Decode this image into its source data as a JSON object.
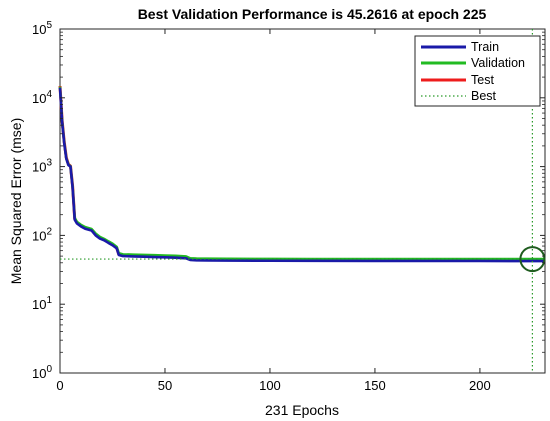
{
  "chart_data": {
    "type": "line",
    "title": "Best Validation Performance is 45.2616 at epoch 225",
    "xlabel": "231 Epochs",
    "ylabel": "Mean Squared Error  (mse)",
    "xlim": [
      0,
      231
    ],
    "ylim": [
      1,
      100000
    ],
    "yscale": "log",
    "xticks": [
      0,
      50,
      100,
      150,
      200
    ],
    "xtick_labels": [
      "0",
      "50",
      "100",
      "150",
      "200"
    ],
    "yticks": [
      {
        "value": 1,
        "base": "10",
        "exp": "0"
      },
      {
        "value": 10,
        "base": "10",
        "exp": "1"
      },
      {
        "value": 100,
        "base": "10",
        "exp": "2"
      },
      {
        "value": 1000,
        "base": "10",
        "exp": "3"
      },
      {
        "value": 10000,
        "base": "10",
        "exp": "4"
      },
      {
        "value": 100000,
        "base": "10",
        "exp": "5"
      }
    ],
    "legend_position": "top-right",
    "colors": {
      "train": "#1a1aa8",
      "validation": "#22bb22",
      "test": "#ee1c1c",
      "best": "#2a9a2a",
      "best_marker": "#1f5c1f"
    },
    "series": [
      {
        "name": "Train",
        "x": [
          0,
          1,
          2,
          3,
          4,
          5,
          6,
          7,
          8,
          10,
          12,
          15,
          17,
          19,
          21,
          23,
          25,
          27,
          28,
          30,
          35,
          40,
          45,
          50,
          55,
          60,
          62,
          65,
          70,
          80,
          100,
          120,
          150,
          180,
          200,
          220,
          225,
          231
        ],
        "y": [
          14000,
          4500,
          2200,
          1300,
          1050,
          1000,
          500,
          170,
          150,
          135,
          125,
          118,
          100,
          90,
          85,
          78,
          72,
          65,
          52,
          50,
          49.5,
          49,
          48.5,
          48,
          47.5,
          46.5,
          44,
          43.5,
          43.2,
          43,
          42.8,
          42.7,
          42.6,
          42.5,
          42.5,
          42.4,
          42.4,
          42.3
        ]
      },
      {
        "name": "Validation",
        "x": [
          0,
          1,
          2,
          3,
          4,
          5,
          6,
          7,
          8,
          10,
          12,
          15,
          17,
          19,
          21,
          23,
          25,
          27,
          28,
          30,
          35,
          40,
          45,
          50,
          55,
          60,
          62,
          65,
          70,
          80,
          100,
          120,
          150,
          180,
          200,
          220,
          225,
          231
        ],
        "y": [
          14500,
          4600,
          2250,
          1320,
          1070,
          1010,
          510,
          180,
          158,
          142,
          132,
          124,
          106,
          95,
          89,
          82,
          76,
          68,
          55,
          53,
          52.5,
          52,
          51.5,
          51,
          50.5,
          49.5,
          46.5,
          46,
          45.8,
          45.6,
          45.5,
          45.4,
          45.3,
          45.3,
          45.3,
          45.3,
          45.2616,
          45.3
        ]
      },
      {
        "name": "Test",
        "x": [
          0,
          1,
          2,
          3,
          4,
          5,
          6,
          7,
          8,
          10,
          12,
          15,
          17,
          19,
          21,
          23,
          25,
          27,
          28,
          30,
          35,
          40,
          45,
          50,
          55,
          60,
          62,
          65,
          70,
          80,
          100,
          120,
          150,
          180,
          200,
          220,
          225,
          231
        ],
        "y": [
          14800,
          4700,
          2300,
          1350,
          1080,
          1020,
          520,
          175,
          155,
          140,
          130,
          122,
          104,
          93,
          87,
          80,
          74,
          66,
          53,
          51,
          50.5,
          50,
          49.5,
          49,
          48.5,
          47.5,
          45,
          44.5,
          44.2,
          44,
          43.8,
          43.7,
          43.6,
          43.6,
          43.6,
          43.6,
          43.6,
          43.6
        ]
      },
      {
        "name": "Best",
        "x": [
          225
        ],
        "y": [
          45.2616
        ]
      }
    ]
  }
}
